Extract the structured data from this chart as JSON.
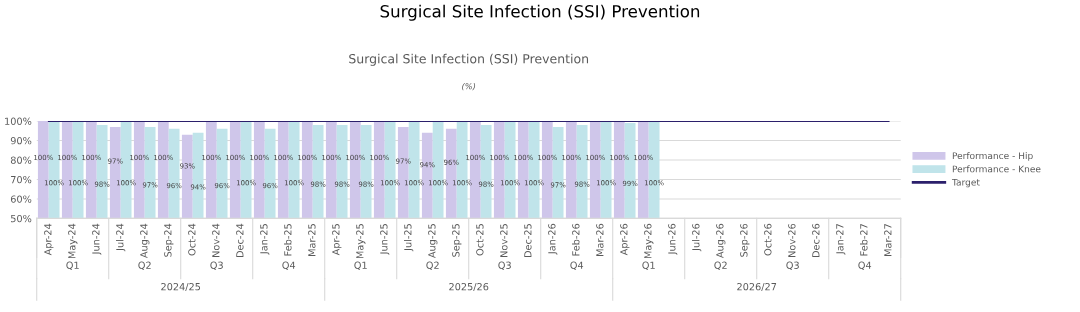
{
  "chart_data": {
    "type": "bar",
    "title": "Surgical Site Infection (SSI) Prevention",
    "subtitle": "(%)",
    "categories": [
      "Apr-24",
      "May-24",
      "Jun-24",
      "Jul-24",
      "Aug-24",
      "Sep-24",
      "Oct-24",
      "Nov-24",
      "Dec-24",
      "Jan-25",
      "Feb-25",
      "Mar-25",
      "Apr-25",
      "May-25",
      "Jun-25",
      "Jul-25",
      "Aug-25",
      "Sep-25",
      "Oct-25",
      "Nov-25",
      "Dec-25",
      "Jan-26",
      "Feb-26",
      "Mar-26",
      "Apr-26",
      "May-26",
      "Jun-26",
      "Jul-26",
      "Aug-26",
      "Sep-26",
      "Oct-26",
      "Nov-26",
      "Dec-26",
      "Jan-27",
      "Feb-27",
      "Mar-27"
    ],
    "series": [
      {
        "name": "Performance - Hip",
        "color": "#cfc6ea",
        "values": [
          100,
          100,
          100,
          97,
          100,
          100,
          93,
          100,
          100,
          100,
          100,
          100,
          100,
          100,
          100,
          97,
          94,
          96,
          100,
          100,
          100,
          100,
          100,
          100,
          100,
          100,
          null,
          null,
          null,
          null,
          null,
          null,
          null,
          null,
          null,
          null
        ],
        "value_labels": [
          "100%",
          "100%",
          "100%",
          "97%",
          "100%",
          "100%",
          "93%",
          "100%",
          "100%",
          "100%",
          "100%",
          "100%",
          "100%",
          "100%",
          "100%",
          "97%",
          "94%",
          "96%",
          "100%",
          "100%",
          "100%",
          "100%",
          "100%",
          "100%",
          "100%",
          "100%",
          null,
          null,
          null,
          null,
          null,
          null,
          null,
          null,
          null,
          null
        ]
      },
      {
        "name": "Performance - Knee",
        "color": "#c0e4ea",
        "values": [
          100,
          100,
          98,
          100,
          97,
          96,
          94,
          96,
          100,
          96,
          100,
          98,
          98,
          98,
          100,
          100,
          100,
          100,
          98,
          100,
          100,
          97,
          98,
          100,
          99,
          100,
          null,
          null,
          null,
          null,
          null,
          null,
          null,
          null,
          null,
          null
        ],
        "value_labels": [
          "100%",
          "100%",
          "98%",
          "100%",
          "97%",
          "96%",
          "94%",
          "96%",
          "100%",
          "96%",
          "100%",
          "98%",
          "98%",
          "98%",
          "100%",
          "100%",
          "100%",
          "100%",
          "98%",
          "100%",
          "100%",
          "97%",
          "98%",
          "100%",
          "99%",
          "100%",
          null,
          null,
          null,
          null,
          null,
          null,
          null,
          null,
          null,
          null
        ]
      },
      {
        "name": "Target",
        "type": "line",
        "color": "#2b1f6b",
        "values": [
          100,
          100,
          100,
          100,
          100,
          100,
          100,
          100,
          100,
          100,
          100,
          100,
          100,
          100,
          100,
          100,
          100,
          100,
          100,
          100,
          100,
          100,
          100,
          100,
          100,
          100,
          100,
          100,
          100,
          100,
          100,
          100,
          100,
          100,
          100,
          100
        ]
      }
    ],
    "ylim": [
      50,
      100
    ],
    "yticks": [
      {
        "value": 50,
        "label": "50%"
      },
      {
        "value": 60,
        "label": "60%"
      },
      {
        "value": 70,
        "label": "70%"
      },
      {
        "value": 80,
        "label": "80%"
      },
      {
        "value": 90,
        "label": "90%"
      },
      {
        "value": 100,
        "label": "100%"
      }
    ],
    "grid": "y",
    "legend": "right",
    "annotations": [
      "Surgical Site Infection (SSI) Prevention",
      "Q1",
      "Q2",
      "Q3",
      "Q4",
      "Q1",
      "Q2",
      "Q3",
      "Q4",
      "Q1",
      "Q2",
      "Q3",
      "Q4",
      "2024/25",
      "2025/26",
      "2026/27"
    ]
  }
}
